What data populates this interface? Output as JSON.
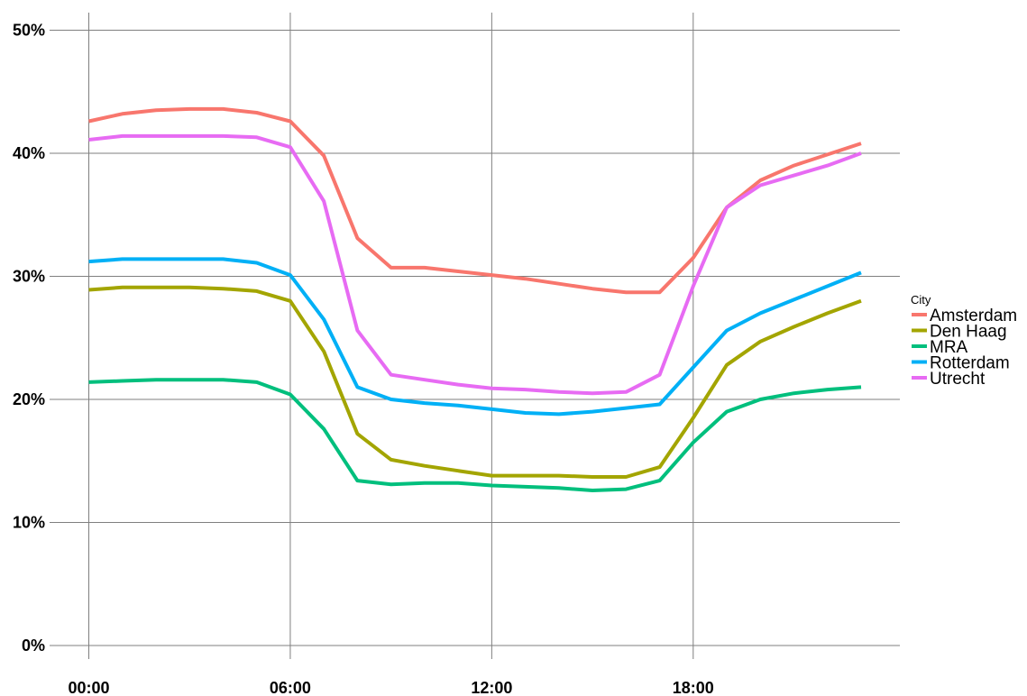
{
  "chart_data": {
    "type": "line",
    "title": "",
    "xlabel": "",
    "ylabel": "",
    "x": [
      0,
      1,
      2,
      3,
      4,
      5,
      6,
      7,
      8,
      9,
      10,
      11,
      12,
      13,
      14,
      15,
      16,
      17,
      18,
      19,
      20,
      21,
      22,
      23
    ],
    "xlim": [
      0,
      23
    ],
    "xticks": [
      0,
      6,
      12,
      18
    ],
    "xtick_labels": [
      "00:00",
      "06:00",
      "12:00",
      "18:00"
    ],
    "ylim": [
      0,
      50
    ],
    "yticks": [
      0,
      10,
      20,
      30,
      40,
      50
    ],
    "ytick_labels": [
      "0%",
      "10%",
      "20%",
      "30%",
      "40%",
      "50%"
    ],
    "grid": true,
    "legend": {
      "title": "City",
      "position": "right"
    },
    "series": [
      {
        "name": "Amsterdam",
        "color": "#F8766D",
        "values": [
          42.6,
          43.2,
          43.5,
          43.6,
          43.6,
          43.3,
          42.6,
          39.8,
          33.1,
          30.7,
          30.7,
          30.4,
          30.1,
          29.8,
          29.4,
          29.0,
          28.7,
          28.7,
          31.5,
          35.6,
          37.8,
          39.0,
          39.9,
          40.8
        ]
      },
      {
        "name": "Den Haag",
        "color": "#A3A500",
        "values": [
          28.9,
          29.1,
          29.1,
          29.1,
          29.0,
          28.8,
          28.0,
          23.9,
          17.2,
          15.1,
          14.6,
          14.2,
          13.8,
          13.8,
          13.8,
          13.7,
          13.7,
          14.5,
          18.5,
          22.8,
          24.7,
          25.9,
          27.0,
          28.0
        ]
      },
      {
        "name": "MRA",
        "color": "#00BF7D",
        "values": [
          21.4,
          21.5,
          21.6,
          21.6,
          21.6,
          21.4,
          20.4,
          17.6,
          13.4,
          13.1,
          13.2,
          13.2,
          13.0,
          12.9,
          12.8,
          12.6,
          12.7,
          13.4,
          16.5,
          19.0,
          20.0,
          20.5,
          20.8,
          21.0
        ]
      },
      {
        "name": "Rotterdam",
        "color": "#00B0F6",
        "values": [
          31.2,
          31.4,
          31.4,
          31.4,
          31.4,
          31.1,
          30.1,
          26.5,
          21.0,
          20.0,
          19.7,
          19.5,
          19.2,
          18.9,
          18.8,
          19.0,
          19.3,
          19.6,
          22.6,
          25.6,
          27.0,
          28.1,
          29.2,
          30.3
        ]
      },
      {
        "name": "Utrecht",
        "color": "#E76BF3",
        "values": [
          41.1,
          41.4,
          41.4,
          41.4,
          41.4,
          41.3,
          40.5,
          36.1,
          25.6,
          22.0,
          21.6,
          21.2,
          20.9,
          20.8,
          20.6,
          20.5,
          20.6,
          22.0,
          29.2,
          35.6,
          37.4,
          38.2,
          39.0,
          40.0
        ]
      }
    ]
  }
}
